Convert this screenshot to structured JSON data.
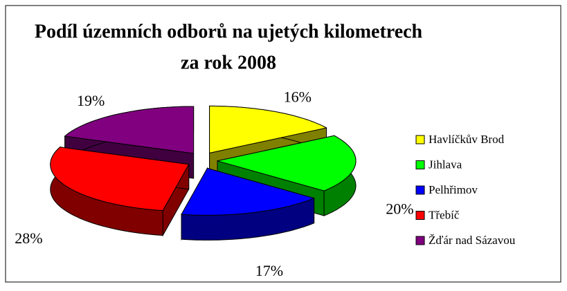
{
  "chart_data": {
    "type": "pie3d",
    "title": [
      "Podíl územních odborů na ujetých kilometrech",
      "za rok 2008"
    ],
    "categories": [
      "Havlíčkův Brod",
      "Jihlava",
      "Pelhřimov",
      "Třebíč",
      "Žďár nad Sázavou"
    ],
    "values": [
      16,
      20,
      17,
      28,
      19
    ],
    "value_labels": [
      "16%",
      "20%",
      "17%",
      "28%",
      "19%"
    ],
    "colors": [
      "#ffff00",
      "#00ff00",
      "#0000ff",
      "#ff0000",
      "#800080"
    ],
    "side_colors": [
      "#808000",
      "#008000",
      "#000080",
      "#800000",
      "#400040"
    ],
    "legend": "right"
  }
}
